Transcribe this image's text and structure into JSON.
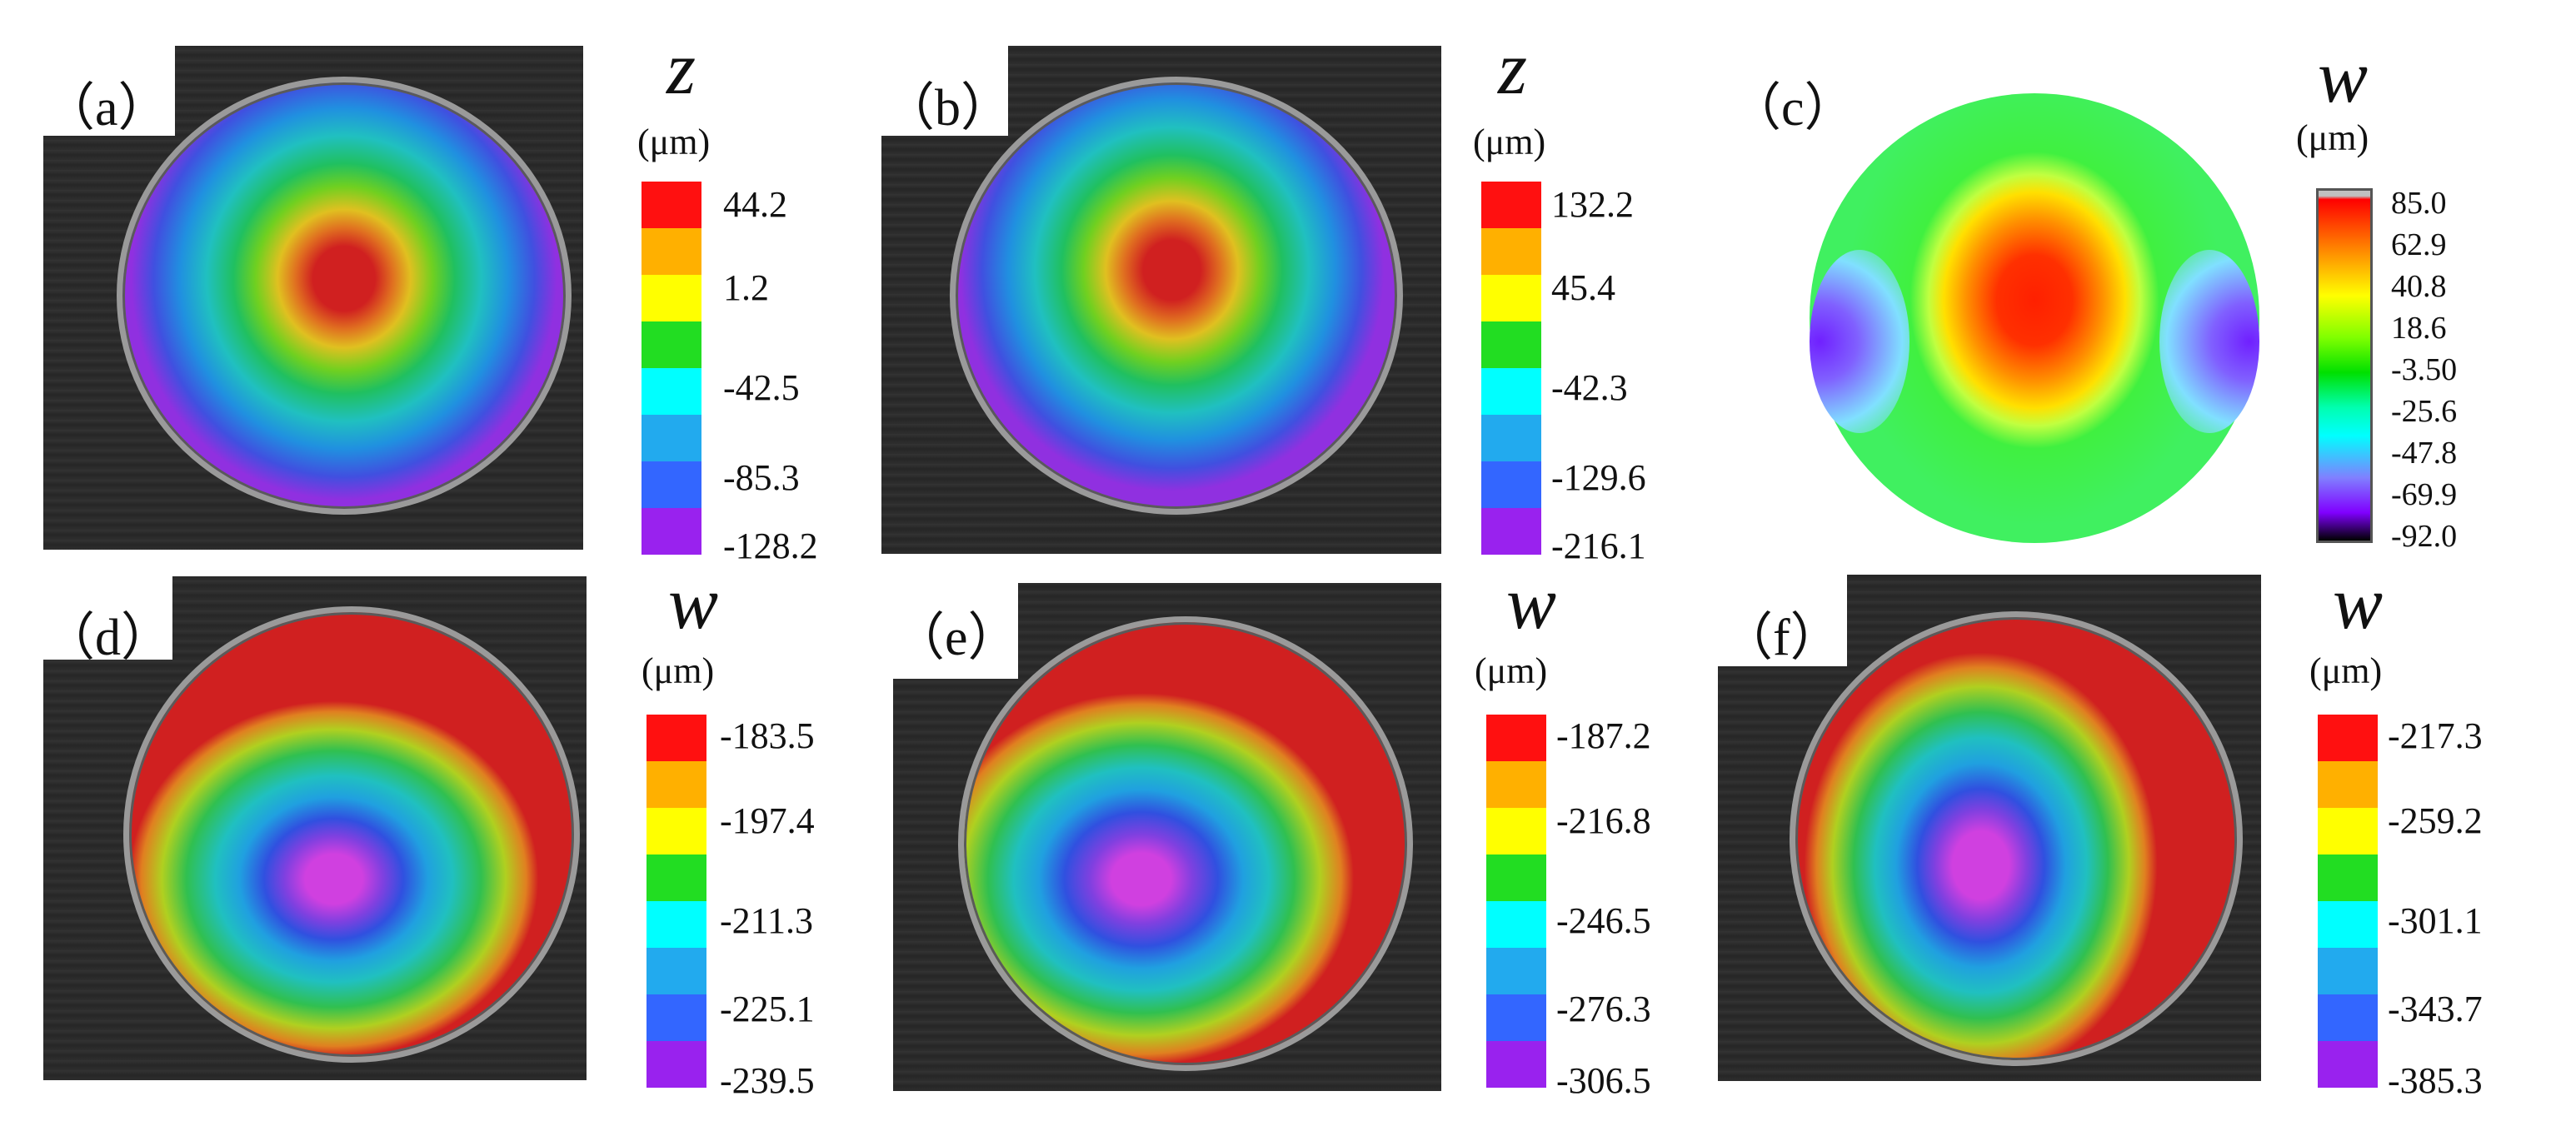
{
  "panels": {
    "a": {
      "label": "（a）",
      "symbol": "z",
      "unit": "(μm)",
      "ticks": [
        "44.2",
        "1.2",
        "-42.5",
        "-85.3",
        "-128.2"
      ]
    },
    "b": {
      "label": "（b）",
      "symbol": "z",
      "unit": "(μm)",
      "ticks": [
        "132.2",
        "45.4",
        "-42.3",
        "-129.6",
        "-216.1"
      ]
    },
    "c": {
      "label": "（c）",
      "symbol": "w",
      "unit": "(μm)",
      "ticks": [
        "85.0",
        "62.9",
        "40.8",
        "18.6",
        "-3.50",
        "-25.6",
        "-47.8",
        "-69.9",
        "-92.0"
      ]
    },
    "d": {
      "label": "（d）",
      "symbol": "w",
      "unit": "(μm)",
      "ticks": [
        "-183.5",
        "-197.4",
        "-211.3",
        "-225.1",
        "-239.5"
      ]
    },
    "e": {
      "label": "（e）",
      "symbol": "w",
      "unit": "(μm)",
      "ticks": [
        "-187.2",
        "-216.8",
        "-246.5",
        "-276.3",
        "-306.5"
      ]
    },
    "f": {
      "label": "（f）",
      "symbol": "w",
      "unit": "(μm)",
      "ticks": [
        "-217.3",
        "-259.2",
        "-301.1",
        "-343.7",
        "-385.3"
      ]
    }
  },
  "colors": {
    "legend_steps": [
      "#ff1010",
      "#ffb000",
      "#ffff00",
      "#22dd22",
      "#00ffff",
      "#22aaee",
      "#3366ff",
      "#9922ee"
    ],
    "photo_background": "#2b2b2b",
    "disc_rim": "#9a9a9a"
  }
}
